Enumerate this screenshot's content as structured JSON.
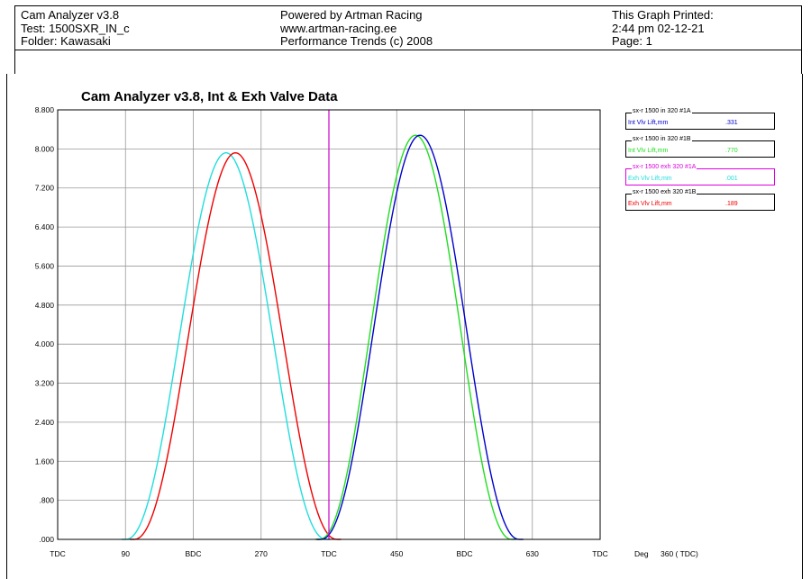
{
  "header": {
    "left": [
      "Cam Analyzer v3.8",
      "Test: 1500SXR_IN_c",
      "Folder: Kawasaki"
    ],
    "center": [
      "Powered by Artman Racing",
      "www.artman-racing.ee",
      "Performance Trends (c) 2008"
    ],
    "right": [
      "This Graph Printed:",
      "2:44 pm 02-12-21",
      "Page:  1"
    ]
  },
  "chart_data": {
    "type": "line",
    "title": "Cam Analyzer v3.8,   Int & Exh Valve Data",
    "xlabel": "Deg",
    "xlabel_extra": "360 ( TDC)",
    "xlim": [
      0,
      720
    ],
    "ylim": [
      0,
      8.8
    ],
    "x_ticks": [
      {
        "value": 0,
        "label": "TDC"
      },
      {
        "value": 90,
        "label": "90"
      },
      {
        "value": 180,
        "label": "BDC"
      },
      {
        "value": 270,
        "label": "270"
      },
      {
        "value": 360,
        "label": "TDC"
      },
      {
        "value": 450,
        "label": "450"
      },
      {
        "value": 540,
        "label": "BDC"
      },
      {
        "value": 630,
        "label": "630"
      },
      {
        "value": 720,
        "label": "TDC"
      }
    ],
    "y_ticks": [
      {
        "value": 0,
        "label": ".000"
      },
      {
        "value": 0.8,
        "label": ".800"
      },
      {
        "value": 1.6,
        "label": "1.600"
      },
      {
        "value": 2.4,
        "label": "2.400"
      },
      {
        "value": 3.2,
        "label": "3.200"
      },
      {
        "value": 4.0,
        "label": "4.000"
      },
      {
        "value": 4.8,
        "label": "4.800"
      },
      {
        "value": 5.6,
        "label": "5.600"
      },
      {
        "value": 6.4,
        "label": "6.400"
      },
      {
        "value": 7.2,
        "label": "7.200"
      },
      {
        "value": 8.0,
        "label": "8.000"
      },
      {
        "value": 8.8,
        "label": "8.800"
      }
    ],
    "grid": true,
    "cursor_x": 360,
    "legend_position": "right",
    "series": [
      {
        "name": "sx-r 1500 in 320 #1A",
        "label": "Int Vlv Lift,mm",
        "value": ".331",
        "color": "#0000cc",
        "open": 349,
        "close": 613,
        "peak": 8.28
      },
      {
        "name": "sx-r 1500 in 320 #1B",
        "label": "Int Vlv Lift,mm",
        "value": ".770",
        "color": "#22dd22",
        "open": 347,
        "close": 603,
        "peak": 8.28
      },
      {
        "name": "sx-r 1500 exh 320 #1A",
        "label": "Exh Vlv Lift,mm",
        "value": ".001",
        "color": "#22dddd",
        "open": 90,
        "close": 357,
        "peak": 7.92
      },
      {
        "name": "sx-r 1500 exh 320 #1B",
        "label": "Exh Vlv Lift,mm",
        "value": ".189",
        "color": "#ee0000",
        "open": 101,
        "close": 371,
        "peak": 7.92
      }
    ],
    "legend_border_colors": [
      "#000000",
      "#000000",
      "#dd00dd",
      "#000000"
    ],
    "legend_name_colors": [
      "#000000",
      "#000000",
      "#dd00dd",
      "#000000"
    ],
    "cursor_color": "#cc00cc"
  }
}
